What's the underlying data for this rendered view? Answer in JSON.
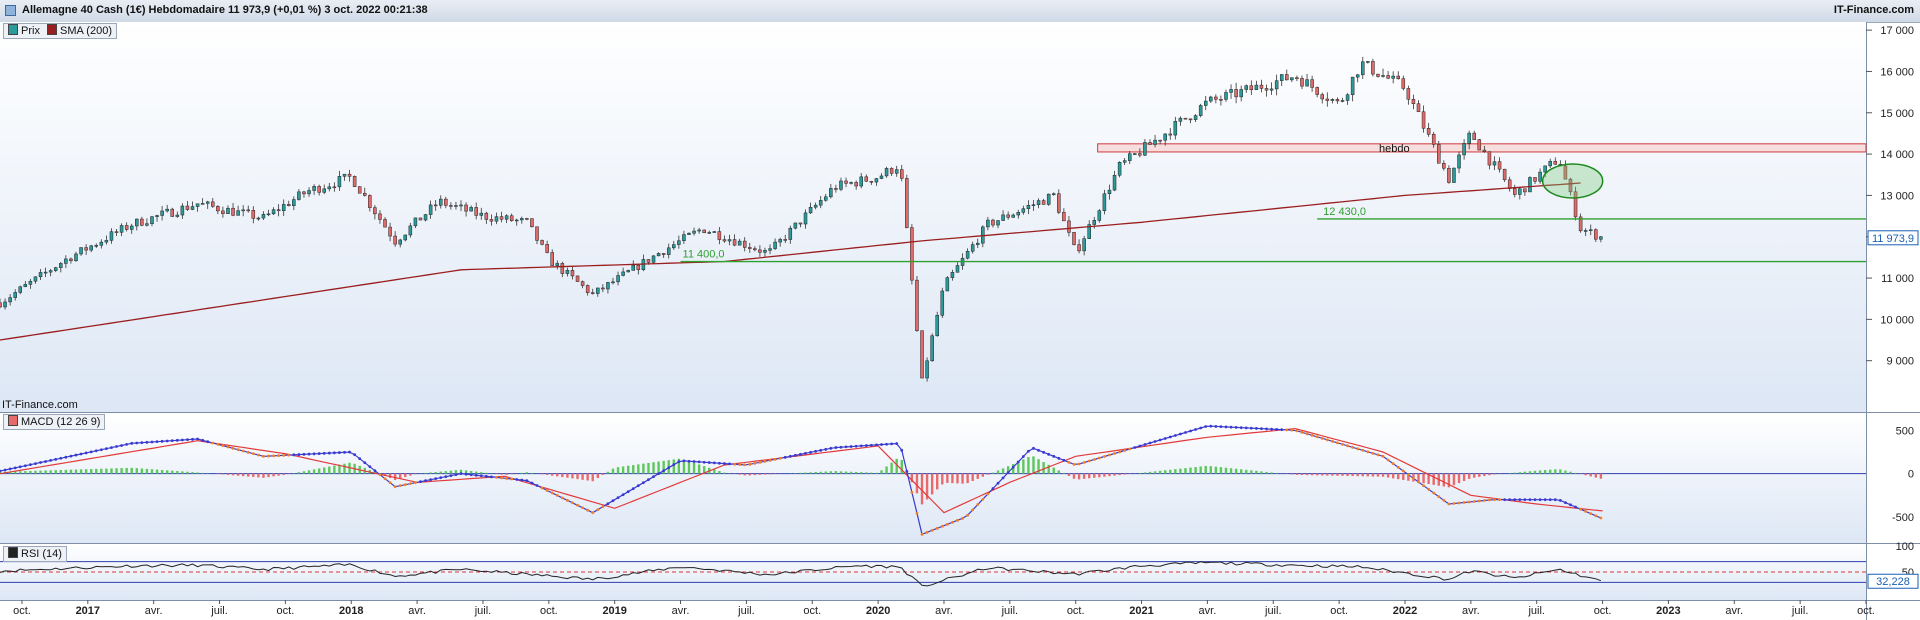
{
  "header": {
    "title": "Allemagne 40 Cash (1€) Hebdomadaire 11 973,9 (+0,01 %) 3 oct. 2022 00:21:38",
    "brand": "IT-Finance.com"
  },
  "colors": {
    "bull": "#2a9a9a",
    "bear": "#e06a6a",
    "sma": "#9b1e1e",
    "support": "#2ea02e",
    "resistance": "#d23a3a",
    "macd_line": "#3a3ad0",
    "signal_line": "#f07f28",
    "ma_line": "#e23a3a",
    "hist_pos": "#5cc85c",
    "hist_neg": "#e86a6a",
    "rsi": "#222222",
    "price_tag": "#1a5fb4"
  },
  "price_panel": {
    "legend": {
      "price": "Prix",
      "sma": "SMA (200)"
    },
    "watermark": "IT-Finance.com",
    "last_price_label": "11 973,9",
    "annotation": "hebdo",
    "support_1_label": "12 430,0",
    "support_2_label": "11 400,0"
  },
  "macd_panel": {
    "legend": "MACD (12 26 9)"
  },
  "rsi_panel": {
    "legend": "RSI (14)",
    "last_label": "32,228"
  },
  "chart_data": [
    {
      "type": "candlestick",
      "title": "Allemagne 40 Cash (1€) Hebdomadaire",
      "x_range": [
        "2016-09",
        "2023-10"
      ],
      "y_ticks": [
        9000,
        10000,
        11000,
        12000,
        13000,
        14000,
        15000,
        16000,
        17000
      ],
      "y_tick_labels": [
        "9 000",
        "10 000",
        "11 000",
        "12 000",
        "13 000",
        "14 000",
        "15 000",
        "16 000",
        "17 000"
      ],
      "ylim": [
        8000,
        17100
      ],
      "x_tick_labels": [
        "oct.",
        "2017",
        "avr.",
        "juil.",
        "oct.",
        "2018",
        "avr.",
        "juil.",
        "oct.",
        "2019",
        "avr.",
        "juil.",
        "oct.",
        "2020",
        "avr.",
        "juil.",
        "oct.",
        "2021",
        "avr.",
        "juil.",
        "oct.",
        "2022",
        "avr.",
        "juil.",
        "oct.",
        "2023",
        "avr.",
        "juil.",
        "oct."
      ],
      "x_tick_dates": [
        "2016-10",
        "2017-01",
        "2017-04",
        "2017-07",
        "2017-10",
        "2018-01",
        "2018-04",
        "2018-07",
        "2018-10",
        "2019-01",
        "2019-04",
        "2019-07",
        "2019-10",
        "2020-01",
        "2020-04",
        "2020-07",
        "2020-10",
        "2021-01",
        "2021-04",
        "2021-07",
        "2021-10",
        "2022-01",
        "2022-04",
        "2022-07",
        "2022-10",
        "2023-01",
        "2023-04",
        "2023-07",
        "2023-10"
      ],
      "x_tick_major": [
        false,
        true,
        false,
        false,
        false,
        true,
        false,
        false,
        false,
        true,
        false,
        false,
        false,
        true,
        false,
        false,
        false,
        true,
        false,
        false,
        false,
        true,
        false,
        false,
        false,
        true,
        false,
        false,
        false
      ],
      "close_anchors": [
        [
          "2016-09",
          10400
        ],
        [
          "2016-12",
          11450
        ],
        [
          "2017-03",
          12300
        ],
        [
          "2017-06",
          12800
        ],
        [
          "2017-09",
          12450
        ],
        [
          "2017-11",
          13100
        ],
        [
          "2018-01",
          13450
        ],
        [
          "2018-03",
          11900
        ],
        [
          "2018-05",
          12850
        ],
        [
          "2018-07",
          12500
        ],
        [
          "2018-09",
          12350
        ],
        [
          "2018-10",
          11450
        ],
        [
          "2018-12",
          10600
        ],
        [
          "2019-03",
          11600
        ],
        [
          "2019-05",
          12200
        ],
        [
          "2019-08",
          11600
        ],
        [
          "2019-11",
          13200
        ],
        [
          "2020-01",
          13450
        ],
        [
          "2020-02",
          13750
        ],
        [
          "2020-03",
          8500
        ],
        [
          "2020-04",
          10800
        ],
        [
          "2020-06",
          12300
        ],
        [
          "2020-09",
          13000
        ],
        [
          "2020-10",
          11600
        ],
        [
          "2020-12",
          13700
        ],
        [
          "2021-04",
          15250
        ],
        [
          "2021-08",
          15900
        ],
        [
          "2021-10",
          15200
        ],
        [
          "2021-11",
          16200
        ],
        [
          "2022-01",
          15600
        ],
        [
          "2022-03",
          13400
        ],
        [
          "2022-04",
          14500
        ],
        [
          "2022-06",
          13000
        ],
        [
          "2022-08",
          13900
        ],
        [
          "2022-09",
          12200
        ],
        [
          "2022-10",
          11974
        ]
      ],
      "sma200_anchors": [
        [
          "2016-09",
          9500
        ],
        [
          "2018-06",
          11200
        ],
        [
          "2019-06",
          11400
        ],
        [
          "2020-03",
          11900
        ],
        [
          "2021-01",
          12350
        ],
        [
          "2022-01",
          13000
        ],
        [
          "2022-09",
          13300
        ]
      ],
      "horizontal_lines": [
        {
          "label": "12 430,0",
          "value": 12430,
          "from": "2021-09"
        },
        {
          "label": "11 400,0",
          "value": 11400,
          "from": "2019-04"
        }
      ],
      "resistance_zone": {
        "from": "2020-11",
        "low": 14100,
        "high": 14200
      },
      "ellipse": {
        "center": [
          "2022-08",
          13350
        ],
        "note": "green highlight"
      }
    },
    {
      "type": "bar+line",
      "name": "MACD (12 26 9)",
      "y_ticks": [
        500,
        0,
        -500
      ],
      "y_tick_labels": [
        "500",
        "0",
        "-500"
      ],
      "ylim": [
        -800,
        700
      ],
      "macd_anchors": [
        [
          "2016-09",
          30
        ],
        [
          "2017-03",
          350
        ],
        [
          "2017-06",
          400
        ],
        [
          "2017-09",
          200
        ],
        [
          "2018-01",
          250
        ],
        [
          "2018-03",
          -150
        ],
        [
          "2018-06",
          0
        ],
        [
          "2018-09",
          -80
        ],
        [
          "2018-12",
          -450
        ],
        [
          "2019-04",
          150
        ],
        [
          "2019-07",
          100
        ],
        [
          "2019-11",
          300
        ],
        [
          "2020-02",
          350
        ],
        [
          "2020-03",
          -700
        ],
        [
          "2020-05",
          -500
        ],
        [
          "2020-08",
          300
        ],
        [
          "2020-10",
          100
        ],
        [
          "2021-04",
          550
        ],
        [
          "2021-08",
          500
        ],
        [
          "2021-12",
          200
        ],
        [
          "2022-03",
          -350
        ],
        [
          "2022-05",
          -300
        ],
        [
          "2022-08",
          -300
        ],
        [
          "2022-10",
          -520
        ]
      ],
      "signal_anchors": [
        [
          "2016-09",
          0
        ],
        [
          "2017-06",
          380
        ],
        [
          "2017-10",
          230
        ],
        [
          "2018-04",
          -100
        ],
        [
          "2018-08",
          -30
        ],
        [
          "2019-01",
          -400
        ],
        [
          "2019-06",
          100
        ],
        [
          "2020-01",
          320
        ],
        [
          "2020-04",
          -450
        ],
        [
          "2020-07",
          -100
        ],
        [
          "2020-10",
          200
        ],
        [
          "2021-04",
          420
        ],
        [
          "2021-08",
          520
        ],
        [
          "2021-12",
          250
        ],
        [
          "2022-04",
          -250
        ],
        [
          "2022-07",
          -350
        ],
        [
          "2022-10",
          -430
        ]
      ]
    },
    {
      "type": "line",
      "name": "RSI (14)",
      "y_ticks": [
        100,
        50
      ],
      "y_tick_labels": [
        "100",
        "50"
      ],
      "ylim": [
        0,
        100
      ],
      "levels": [
        70,
        30
      ],
      "mid_level": 50,
      "rsi_anchors": [
        [
          "2016-09",
          52
        ],
        [
          "2017-03",
          62
        ],
        [
          "2017-06",
          63
        ],
        [
          "2017-09",
          55
        ],
        [
          "2018-01",
          64
        ],
        [
          "2018-03",
          42
        ],
        [
          "2018-06",
          55
        ],
        [
          "2018-12",
          36
        ],
        [
          "2019-04",
          60
        ],
        [
          "2019-08",
          45
        ],
        [
          "2019-12",
          62
        ],
        [
          "2020-02",
          60
        ],
        [
          "2020-03",
          22
        ],
        [
          "2020-06",
          58
        ],
        [
          "2020-10",
          46
        ],
        [
          "2021-01",
          62
        ],
        [
          "2021-04",
          68
        ],
        [
          "2021-08",
          63
        ],
        [
          "2021-11",
          60
        ],
        [
          "2022-03",
          36
        ],
        [
          "2022-04",
          52
        ],
        [
          "2022-06",
          38
        ],
        [
          "2022-08",
          55
        ],
        [
          "2022-10",
          32
        ]
      ]
    }
  ]
}
